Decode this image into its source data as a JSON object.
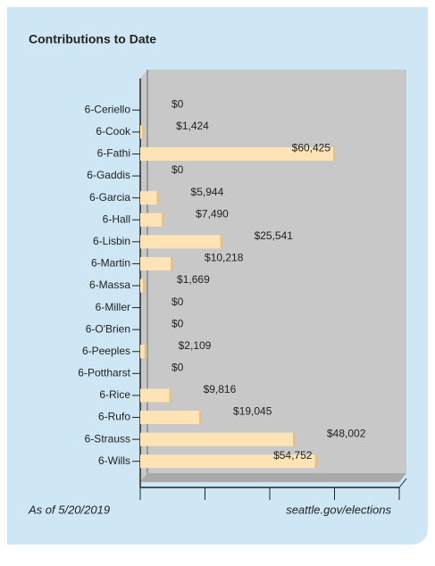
{
  "chart_data": {
    "type": "bar",
    "orientation": "horizontal",
    "title": "Contributions to Date",
    "categories": [
      "6-Ceriello",
      "6-Cook",
      "6-Fathi",
      "6-Gaddis",
      "6-Garcia",
      "6-Hall",
      "6-Lisbin",
      "6-Martin",
      "6-Massa",
      "6-Miller",
      "6-O'Brien",
      "6-Peeples",
      "6-Pottharst",
      "6-Rice",
      "6-Rufo",
      "6-Strauss",
      "6-Wills"
    ],
    "values": [
      0,
      1424,
      60425,
      0,
      5944,
      7490,
      25541,
      10218,
      1669,
      0,
      0,
      2109,
      0,
      9816,
      19045,
      48002,
      54752
    ],
    "value_labels": [
      "$0",
      "$1,424",
      "$60,425",
      "$0",
      "$5,944",
      "$7,490",
      "$25,541",
      "$10,218",
      "$1,669",
      "$0",
      "$0",
      "$2,109",
      "$0",
      "$9,816",
      "$19,045",
      "$48,002",
      "$54,752"
    ],
    "color": "#fde3b6",
    "xlim": [
      0,
      80000
    ],
    "xticks": [
      0,
      20000,
      40000,
      60000,
      80000
    ],
    "footnote_left": "As of 5/20/2019",
    "footnote_right": "seattle.gov/elections"
  }
}
